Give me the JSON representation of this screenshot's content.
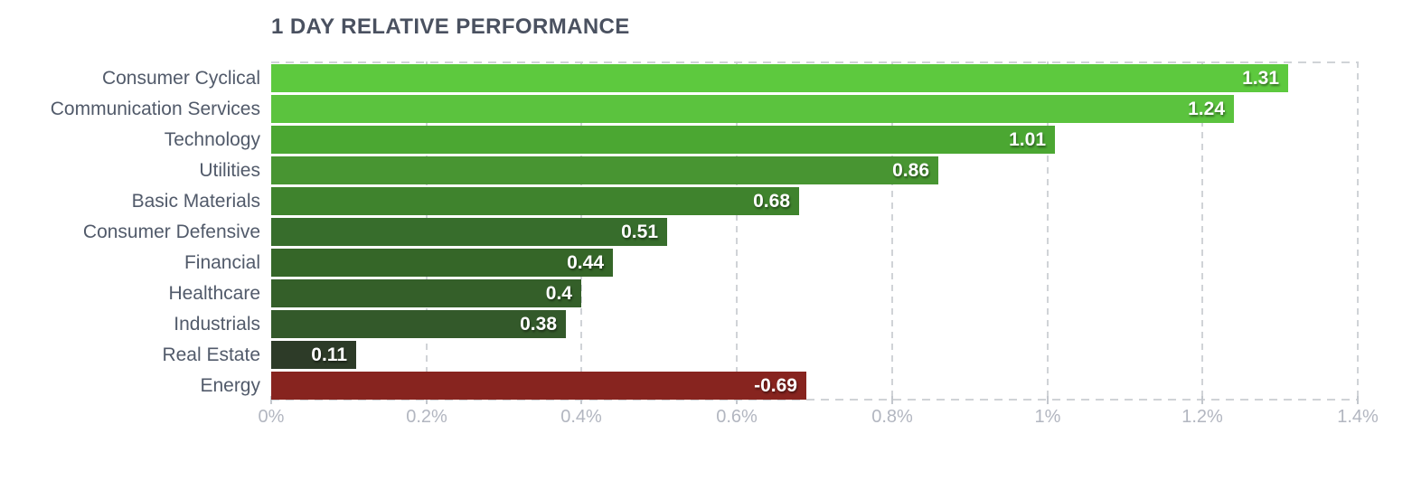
{
  "title": "1 DAY RELATIVE PERFORMANCE",
  "chart_data": {
    "type": "bar",
    "orientation": "horizontal",
    "title": "1 DAY RELATIVE PERFORMANCE",
    "categories": [
      "Consumer Cyclical",
      "Communication Services",
      "Technology",
      "Utilities",
      "Basic Materials",
      "Consumer Defensive",
      "Financial",
      "Healthcare",
      "Industrials",
      "Real Estate",
      "Energy"
    ],
    "values": [
      1.31,
      1.24,
      1.01,
      0.86,
      0.68,
      0.51,
      0.44,
      0.4,
      0.38,
      0.11,
      -0.69
    ],
    "value_labels": [
      "1.31",
      "1.24",
      "1.01",
      "0.86",
      "0.68",
      "0.51",
      "0.44",
      "0.4",
      "0.38",
      "0.11",
      "-0.69"
    ],
    "bar_colors": [
      "#5dc93e",
      "#5bc33e",
      "#4ba732",
      "#489532",
      "#3f832d",
      "#376d2c",
      "#356628",
      "#345f29",
      "#33592a",
      "#2d3b28",
      "#87241f"
    ],
    "x_tick_labels": [
      "0%",
      "0.2%",
      "0.4%",
      "0.6%",
      "0.8%",
      "1%",
      "1.2%",
      "1.4%"
    ],
    "x_tick_values": [
      0,
      0.2,
      0.4,
      0.6,
      0.8,
      1.0,
      1.2,
      1.4
    ],
    "xlim": [
      0,
      1.4
    ],
    "grid": "vertical-dashed",
    "legend": "none",
    "note": "bar length encodes absolute value; negative value shown red"
  },
  "colors": {
    "background": "#ffffff",
    "title_text": "#4a5160",
    "category_text": "#515a6a",
    "tick_text": "#b2b6c0",
    "grid_line": "#d0d3d7",
    "value_text": "#ffffff",
    "axis_tick_mark": "#c3c7cd",
    "negative_bar": "#87241f",
    "positive_bar_max": "#5dc93e",
    "positive_bar_min": "#2d3b28"
  }
}
